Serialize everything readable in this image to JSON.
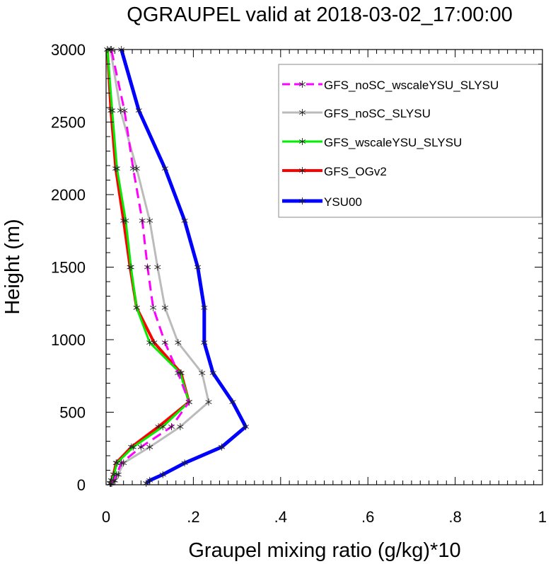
{
  "chart_data": {
    "type": "line",
    "title": "QGRAUPEL valid at 2018-03-02_17:00:00",
    "xlabel": "Graupel mixing ratio (g/kg)*10",
    "ylabel": "Height (m)",
    "xlim": [
      0,
      1
    ],
    "ylim": [
      0,
      3000
    ],
    "x_ticks": [
      0,
      0.2,
      0.4,
      0.6,
      0.8,
      1
    ],
    "x_tick_labels": [
      "0",
      ".2",
      ".4",
      ".6",
      ".8",
      "1"
    ],
    "y_ticks": [
      0,
      500,
      1000,
      1500,
      2000,
      2500,
      3000
    ],
    "y_tick_labels": [
      "0",
      "500",
      "1000",
      "1500",
      "2000",
      "2500",
      "3000"
    ],
    "grid": false,
    "legend_position": "top-right",
    "heights": [
      10,
      30,
      70,
      150,
      260,
      400,
      570,
      770,
      980,
      1220,
      1500,
      1820,
      2180,
      2580,
      3000
    ],
    "series": [
      {
        "name": "GFS_noSC_wscaleYSU_SLYSU",
        "color": "#ff00ff",
        "dash": "dashed",
        "width": 3,
        "x": [
          0.011,
          0.017,
          0.024,
          0.035,
          0.08,
          0.15,
          0.19,
          0.165,
          0.135,
          0.108,
          0.095,
          0.083,
          0.062,
          0.042,
          0.012
        ]
      },
      {
        "name": "GFS_noSC_SLYSU",
        "color": "#bbbbbb",
        "dash": "solid",
        "width": 3,
        "x": [
          0.013,
          0.02,
          0.028,
          0.04,
          0.1,
          0.17,
          0.235,
          0.22,
          0.165,
          0.135,
          0.118,
          0.1,
          0.07,
          0.033,
          0.01
        ]
      },
      {
        "name": "GFS_wscaleYSU_SLYSU",
        "color": "#00ee00",
        "dash": "solid",
        "width": 3,
        "x": [
          0.01,
          0.013,
          0.018,
          0.025,
          0.062,
          0.13,
          0.19,
          0.17,
          0.1,
          0.07,
          0.057,
          0.045,
          0.025,
          0.014,
          0.003
        ]
      },
      {
        "name": "GFS_OGv2",
        "color": "#ff0000",
        "dash": "solid",
        "width": 4,
        "x": [
          0.009,
          0.012,
          0.017,
          0.023,
          0.058,
          0.12,
          0.19,
          0.172,
          0.11,
          0.07,
          0.055,
          0.04,
          0.022,
          0.011,
          0.003
        ]
      },
      {
        "name": "YSU00",
        "color": "#0000ff",
        "dash": "solid",
        "width": 5,
        "x": [
          0.092,
          0.1,
          0.13,
          0.18,
          0.265,
          0.32,
          0.29,
          0.245,
          0.225,
          0.225,
          0.21,
          0.18,
          0.135,
          0.075,
          0.035
        ]
      }
    ]
  }
}
